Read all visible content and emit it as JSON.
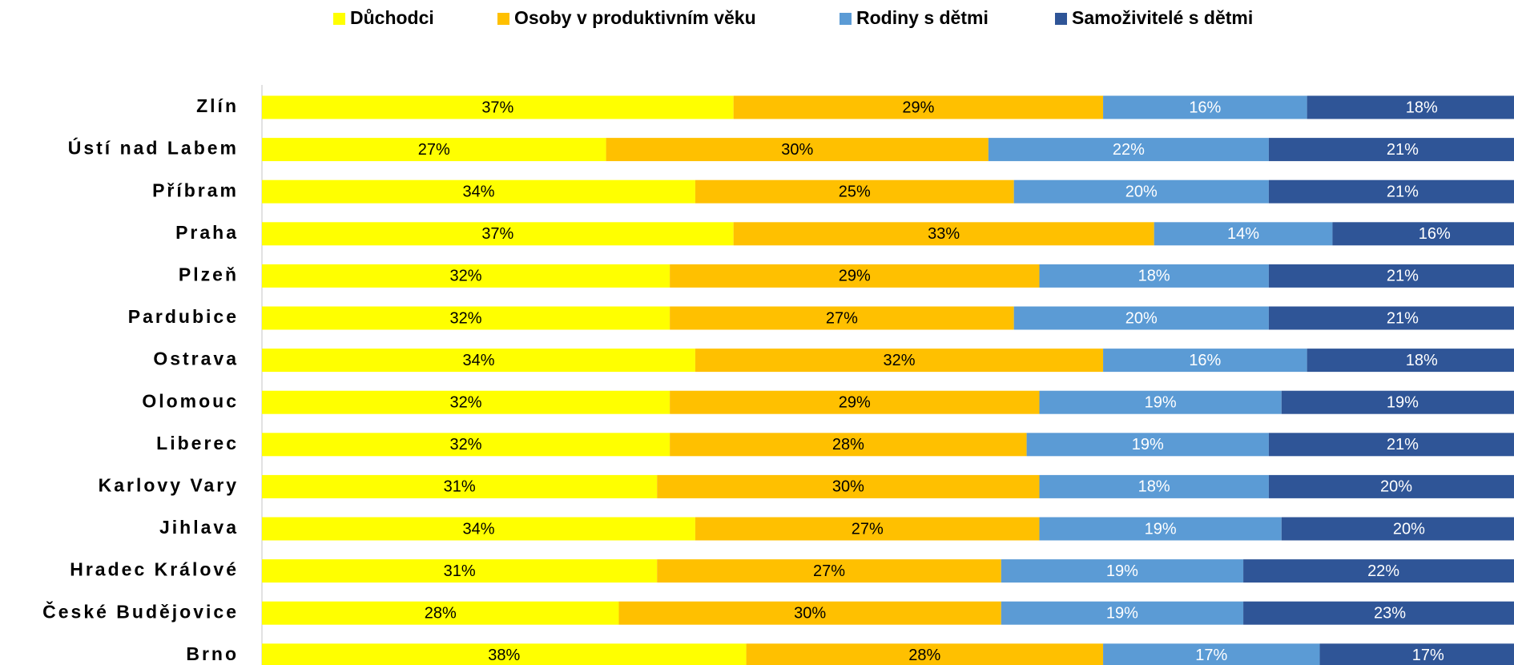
{
  "chart_data": {
    "type": "stacked-barh",
    "categories": [
      "Zlín",
      "Ústí nad Labem",
      "Příbram",
      "Praha",
      "Plzeň",
      "Pardubice",
      "Ostrava",
      "Olomouc",
      "Liberec",
      "Karlovy Vary",
      "Jihlava",
      "Hradec Králové",
      "České Budějovice",
      "Brno"
    ],
    "xlim": [
      0,
      100
    ],
    "series": [
      {
        "name": "Důchodci",
        "color": "#ffff00",
        "label_color": "#000000",
        "values": [
          37,
          27,
          34,
          37,
          32,
          32,
          34,
          32,
          32,
          31,
          34,
          31,
          28,
          38
        ],
        "value_labels": [
          "37%",
          "27%",
          "34%",
          "37%",
          "32%",
          "32%",
          "34%",
          "32%",
          "32%",
          "31%",
          "34%",
          "31%",
          "28%",
          "38%"
        ]
      },
      {
        "name": "Osoby v produktivním věku",
        "color": "#ffc000",
        "label_color": "#000000",
        "values": [
          29,
          30,
          25,
          33,
          29,
          27,
          32,
          29,
          28,
          30,
          27,
          27,
          30,
          28
        ],
        "value_labels": [
          "29%",
          "30%",
          "25%",
          "33%",
          "29%",
          "27%",
          "32%",
          "29%",
          "28%",
          "30%",
          "27%",
          "27%",
          "30%",
          "28%"
        ]
      },
      {
        "name": "Rodiny s dětmi",
        "color": "#5b9bd5",
        "label_color": "#ffffff",
        "values": [
          16,
          22,
          20,
          14,
          18,
          20,
          16,
          19,
          19,
          18,
          19,
          19,
          19,
          17
        ],
        "value_labels": [
          "16%",
          "22%",
          "20%",
          "14%",
          "18%",
          "20%",
          "16%",
          "19%",
          "19%",
          "18%",
          "19%",
          "19%",
          "19%",
          "17%"
        ]
      },
      {
        "name": "Samoživitelé s dětmi",
        "color": "#2f5597",
        "label_color": "#ffffff",
        "values": [
          18,
          21,
          21,
          16,
          21,
          21,
          18,
          19,
          21,
          20,
          20,
          22,
          23,
          17
        ],
        "value_labels": [
          "18%",
          "21%",
          "21%",
          "16%",
          "21%",
          "21%",
          "18%",
          "19%",
          "21%",
          "20%",
          "20%",
          "22%",
          "23%",
          "17%"
        ]
      }
    ]
  }
}
